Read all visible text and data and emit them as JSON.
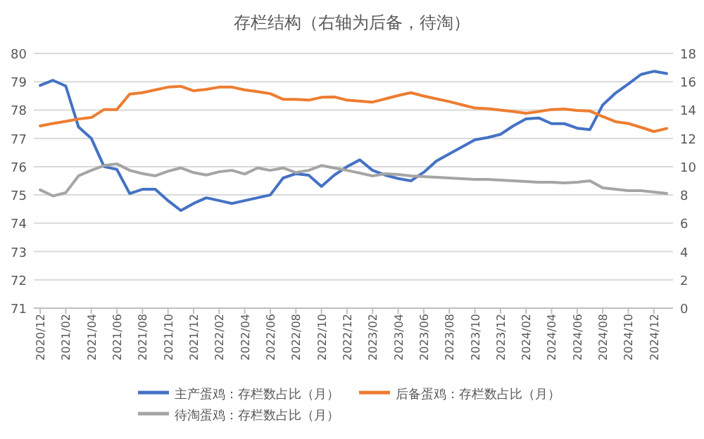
{
  "chart_data": {
    "type": "line",
    "title": "存栏结构（右轴为后备，待淘）",
    "categories": [
      "2020/12",
      null,
      "2021/02",
      null,
      "2021/04",
      null,
      "2021/06",
      null,
      "2021/08",
      null,
      "2021/10",
      null,
      "2021/12",
      null,
      "2022/02",
      null,
      "2022/04",
      null,
      "2022/06",
      null,
      "2022/08",
      null,
      "2022/10",
      null,
      "2022/12",
      null,
      "2023/02",
      null,
      "2023/04",
      null,
      "2023/06",
      null,
      "2023/08",
      null,
      "2023/10",
      null,
      "2023/12",
      null,
      "2024/02",
      null,
      "2024/04",
      null,
      "2024/06",
      null,
      "2024/08",
      null,
      "2024/10",
      null,
      "2024/12",
      null
    ],
    "series": [
      {
        "name": "主产蛋鸡：存栏数占比（月）",
        "color": "#4472c4",
        "values": [
          78.87,
          79.05,
          78.85,
          77.4,
          77.0,
          76.0,
          75.9,
          75.05,
          75.2,
          75.2,
          74.8,
          74.45,
          74.7,
          74.9,
          74.8,
          74.7,
          74.8,
          74.9,
          75.0,
          75.6,
          75.75,
          75.7,
          75.3,
          75.7,
          76.0,
          76.24,
          75.87,
          75.7,
          75.58,
          75.5,
          75.8,
          76.2,
          76.45,
          76.7,
          76.95,
          77.03,
          77.14,
          77.44,
          77.69,
          77.72,
          77.52,
          77.52,
          77.36,
          77.31,
          78.18,
          78.6,
          78.92,
          79.26,
          79.37,
          79.29
        ]
      },
      {
        "name": "后备蛋鸡：存栏数占比（月）",
        "color": "#ed7d31",
        "axis": "y2",
        "values": [
          12.88,
          13.05,
          13.2,
          13.37,
          13.47,
          14.04,
          14.04,
          15.13,
          15.23,
          15.43,
          15.62,
          15.68,
          15.36,
          15.46,
          15.62,
          15.62,
          15.43,
          15.3,
          15.16,
          14.76,
          14.76,
          14.7,
          14.9,
          14.93,
          14.7,
          14.63,
          14.56,
          14.79,
          15.03,
          15.23,
          14.99,
          14.79,
          14.6,
          14.37,
          14.14,
          14.1,
          14.0,
          13.9,
          13.77,
          13.9,
          14.04,
          14.07,
          13.97,
          13.93,
          13.54,
          13.18,
          13.05,
          12.78,
          12.48,
          12.7
        ]
      },
      {
        "name": "待淘蛋鸡：存栏数占比（月）",
        "color": "#a5a5a5",
        "axis": "y2",
        "values": [
          8.36,
          7.93,
          8.16,
          9.35,
          9.74,
          10.08,
          10.2,
          9.74,
          9.51,
          9.35,
          9.68,
          9.91,
          9.58,
          9.41,
          9.64,
          9.74,
          9.48,
          9.91,
          9.74,
          9.91,
          9.58,
          9.74,
          10.08,
          9.91,
          9.74,
          9.55,
          9.35,
          9.5,
          9.45,
          9.35,
          9.3,
          9.25,
          9.2,
          9.15,
          9.1,
          9.1,
          9.05,
          9.0,
          8.95,
          8.9,
          8.9,
          8.85,
          8.9,
          9.0,
          8.5,
          8.4,
          8.3,
          8.3,
          8.2,
          8.1
        ]
      }
    ],
    "ylim": [
      71,
      80
    ],
    "yticks": [
      71,
      72,
      73,
      74,
      75,
      76,
      77,
      78,
      79,
      80
    ],
    "y2lim": [
      0,
      18
    ],
    "y2ticks": [
      0,
      2,
      4,
      6,
      8,
      10,
      12,
      14,
      16,
      18
    ],
    "grid": "y",
    "legend": "bottom"
  }
}
